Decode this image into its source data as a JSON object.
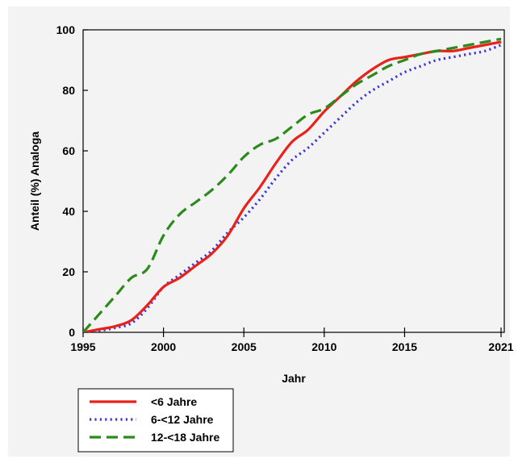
{
  "chart_data": {
    "type": "line",
    "title": "",
    "xlabel": "Jahr",
    "ylabel": "Anteil (%) Analoga",
    "xlim": [
      1995,
      2021.2
    ],
    "ylim": [
      0,
      100
    ],
    "x_ticks": [
      1995,
      2000,
      2005,
      2010,
      2015,
      2021
    ],
    "y_ticks": [
      0,
      20,
      40,
      60,
      80,
      100
    ],
    "grid": false,
    "legend_position": "bottom-left",
    "x": [
      1995,
      1996,
      1997,
      1998,
      1999,
      2000,
      2001,
      2002,
      2003,
      2004,
      2005,
      2006,
      2007,
      2008,
      2009,
      2010,
      2011,
      2012,
      2013,
      2014,
      2015,
      2016,
      2017,
      2018,
      2019,
      2020,
      2021
    ],
    "series": [
      {
        "name": "<6 Jahre",
        "color": "#e8221b",
        "dash": "solid",
        "values": [
          0,
          1,
          2,
          4,
          9,
          15,
          18,
          22,
          26,
          32,
          41,
          48,
          56,
          63,
          67,
          73,
          78,
          83,
          87,
          90,
          91,
          92,
          93,
          93,
          94,
          95,
          96
        ]
      },
      {
        "name": "6-<12 Jahre",
        "color": "#3b36d6",
        "dash": "dotted",
        "values": [
          0,
          0.5,
          1.5,
          3,
          8,
          15,
          19,
          23,
          27,
          33,
          38,
          44,
          51,
          57,
          61,
          66,
          71,
          76,
          80,
          83,
          86,
          88,
          90,
          91,
          92,
          93,
          95
        ]
      },
      {
        "name": "12-<18 Jahre",
        "color": "#2a8a1a",
        "dash": "dashed",
        "values": [
          0,
          6,
          12,
          18,
          21,
          32,
          39,
          43,
          47,
          52,
          58,
          62,
          64,
          68,
          72,
          74,
          78,
          82,
          85,
          88,
          90,
          92,
          93,
          94,
          95,
          96,
          97
        ]
      }
    ]
  }
}
